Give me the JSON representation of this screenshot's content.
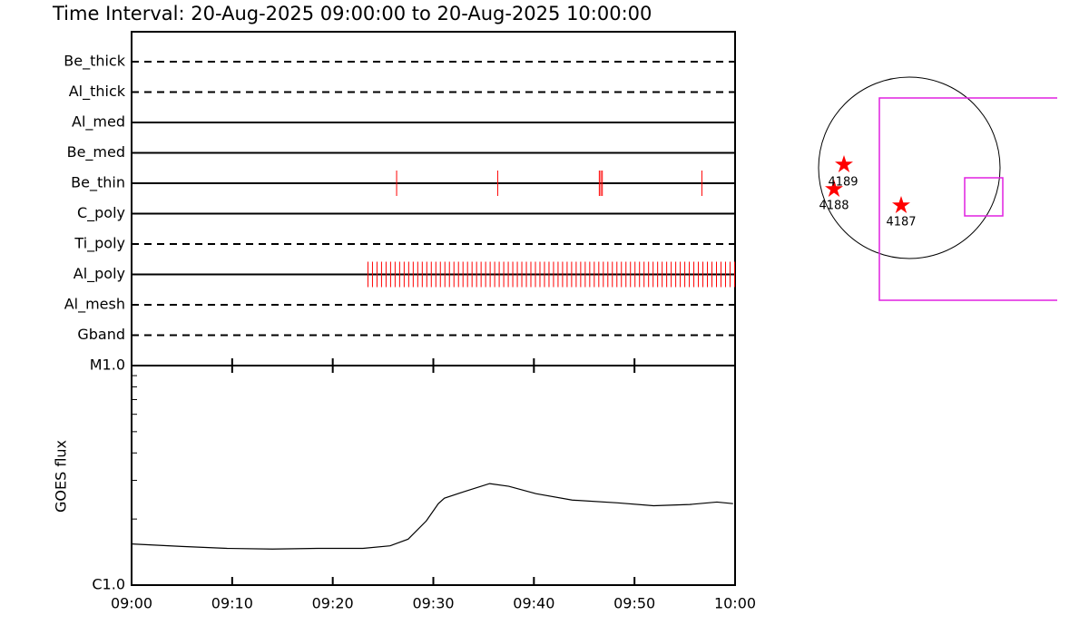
{
  "title": "Time Interval: 20-Aug-2025 09:00:00 to 20-Aug-2025 10:00:00",
  "chart_data": [
    {
      "type": "timeline",
      "xlim": [
        0,
        60
      ],
      "color": "#ff0000",
      "rows": [
        {
          "name": "Be_thick",
          "style": "dashed",
          "times": []
        },
        {
          "name": "Al_thick",
          "style": "dashed",
          "times": []
        },
        {
          "name": "Al_med",
          "style": "solid",
          "times": []
        },
        {
          "name": "Be_med",
          "style": "solid",
          "times": []
        },
        {
          "name": "Be_thin",
          "style": "solid",
          "times": [
            26.35,
            36.4,
            46.5,
            46.65,
            46.8,
            56.7
          ]
        },
        {
          "name": "C_poly",
          "style": "solid",
          "times": []
        },
        {
          "name": "Ti_poly",
          "style": "dashed",
          "times": []
        },
        {
          "name": "Al_poly",
          "style": "solid",
          "times": [
            23.5,
            23.95,
            24.4,
            24.85,
            25.3,
            25.75,
            26.2,
            26.65,
            27.1,
            27.55,
            28.0,
            28.45,
            28.9,
            29.35,
            29.8,
            30.25,
            30.7,
            31.15,
            31.6,
            32.05,
            32.5,
            32.95,
            33.4,
            33.85,
            34.3,
            34.75,
            35.2,
            35.65,
            36.1,
            36.55,
            37.0,
            37.45,
            37.9,
            38.35,
            38.8,
            39.25,
            39.7,
            40.15,
            40.6,
            41.05,
            41.5,
            41.95,
            42.4,
            42.85,
            43.3,
            43.75,
            44.2,
            44.65,
            45.1,
            45.55,
            46.0,
            46.45,
            46.9,
            47.35,
            47.8,
            48.25,
            48.7,
            49.15,
            49.6,
            50.05,
            50.5,
            50.95,
            51.4,
            51.85,
            52.3,
            52.75,
            53.2,
            53.65,
            54.1,
            54.55,
            55.0,
            55.45,
            55.9,
            56.35,
            56.8,
            57.25,
            57.7,
            58.15,
            58.6,
            59.05,
            59.5,
            59.95
          ]
        },
        {
          "name": "Al_mesh",
          "style": "dashed",
          "times": []
        },
        {
          "name": "Gband",
          "style": "dashed",
          "times": []
        }
      ]
    },
    {
      "type": "line",
      "ylabel": "GOES flux",
      "color": "#000000",
      "log_y": true,
      "xlim": [
        0,
        60
      ],
      "xticks": [
        {
          "value": 0,
          "label": "09:00"
        },
        {
          "value": 10,
          "label": "09:10"
        },
        {
          "value": 20,
          "label": "09:20"
        },
        {
          "value": 30,
          "label": "09:30"
        },
        {
          "value": 40,
          "label": "09:40"
        },
        {
          "value": 50,
          "label": "09:50"
        },
        {
          "value": 60,
          "label": "10:00"
        }
      ],
      "ylim": [
        1e-06,
        1e-05
      ],
      "yticks": [
        {
          "value": 1e-06,
          "label": "C1.0"
        },
        {
          "value": 1e-05,
          "label": "M1.0"
        }
      ],
      "yminor_ticks": [
        2e-06,
        3e-06,
        4e-06,
        5e-06,
        6e-06,
        7e-06,
        8e-06,
        9e-06
      ],
      "x": [
        0,
        5,
        9.5,
        14,
        18.5,
        23,
        25.7,
        27.5,
        29.3,
        30.5,
        31.1,
        33,
        35.6,
        37.5,
        40.2,
        43.8,
        48.3,
        51.9,
        55.5,
        58.2,
        59.8
      ],
      "values": [
        1.54e-06,
        1.5e-06,
        1.47e-06,
        1.46e-06,
        1.47e-06,
        1.47e-06,
        1.51e-06,
        1.62e-06,
        1.96e-06,
        2.35e-06,
        2.49e-06,
        2.66e-06,
        2.9e-06,
        2.82e-06,
        2.61e-06,
        2.44e-06,
        2.37e-06,
        2.3e-06,
        2.33e-06,
        2.39e-06,
        2.35e-06
      ]
    }
  ],
  "sun_map": {
    "regions": [
      {
        "label": "4189"
      },
      {
        "label": "4188"
      },
      {
        "label": "4187"
      }
    ]
  }
}
